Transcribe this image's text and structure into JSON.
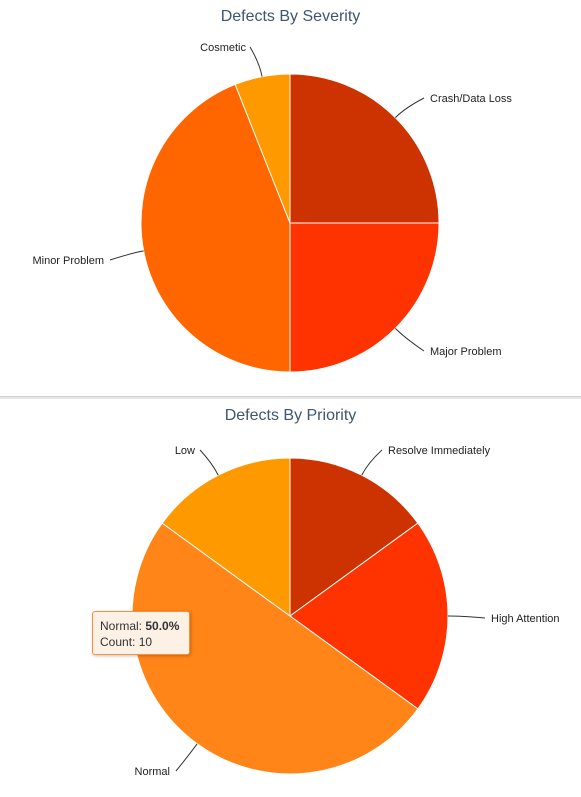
{
  "chart_data": [
    {
      "type": "pie",
      "title": "Defects By Severity",
      "categories": [
        "Crash/Data Loss",
        "Major Problem",
        "Minor Problem",
        "Cosmetic"
      ],
      "values": [
        25,
        25,
        44,
        6
      ],
      "colors": [
        "#cc3300",
        "#ff3300",
        "#ff6600",
        "#ff9900"
      ]
    },
    {
      "type": "pie",
      "title": "Defects By Priority",
      "categories": [
        "Resolve Immediately",
        "High Attention",
        "Normal",
        "Low"
      ],
      "values": [
        15,
        20,
        50,
        15
      ],
      "colors": [
        "#cc3300",
        "#ff3300",
        "#ff8519",
        "#ff9900"
      ]
    }
  ],
  "tooltip": {
    "series": "Normal",
    "percent": "50.0%",
    "count_label": "Count:",
    "count": "10"
  }
}
